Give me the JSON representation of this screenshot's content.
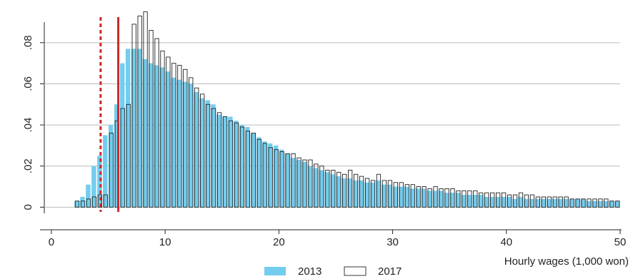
{
  "chart_data": {
    "type": "histogram",
    "x_label": "Hourly wages (1,000 won)",
    "bins": [
      2,
      2.5,
      3,
      3.5,
      4,
      4.5,
      5,
      5.5,
      6,
      6.5,
      7,
      7.5,
      8,
      8.5,
      9,
      9.5,
      10,
      10.5,
      11,
      11.5,
      12,
      12.5,
      13,
      13.5,
      14,
      14.5,
      15,
      15.5,
      16,
      16.5,
      17,
      17.5,
      18,
      18.5,
      19,
      19.5,
      20,
      20.5,
      21,
      21.5,
      22,
      22.5,
      23,
      23.5,
      24,
      24.5,
      25,
      25.5,
      26,
      26.5,
      27,
      27.5,
      28,
      28.5,
      29,
      29.5,
      30,
      30.5,
      31,
      31.5,
      32,
      32.5,
      33,
      33.5,
      34,
      34.5,
      35,
      35.5,
      36,
      36.5,
      37,
      37.5,
      38,
      38.5,
      39,
      39.5,
      40,
      40.5,
      41,
      41.5,
      42,
      42.5,
      43,
      43.5,
      44,
      44.5,
      45,
      45.5,
      46,
      46.5,
      47,
      47.5,
      48,
      48.5,
      49,
      49.5,
      50
    ],
    "series": [
      {
        "name": "2013",
        "color": "#73cdee",
        "style": "filled",
        "values": [
          0.003,
          0.005,
          0.011,
          0.02,
          0.025,
          0.035,
          0.04,
          0.05,
          0.07,
          0.077,
          0.077,
          0.077,
          0.072,
          0.07,
          0.069,
          0.068,
          0.066,
          0.063,
          0.062,
          0.061,
          0.06,
          0.056,
          0.053,
          0.052,
          0.05,
          0.045,
          0.044,
          0.044,
          0.042,
          0.04,
          0.039,
          0.036,
          0.034,
          0.032,
          0.031,
          0.03,
          0.028,
          0.026,
          0.024,
          0.023,
          0.022,
          0.02,
          0.019,
          0.018,
          0.017,
          0.016,
          0.015,
          0.014,
          0.014,
          0.013,
          0.013,
          0.012,
          0.012,
          0.013,
          0.011,
          0.011,
          0.01,
          0.01,
          0.01,
          0.009,
          0.009,
          0.009,
          0.008,
          0.008,
          0.008,
          0.007,
          0.007,
          0.007,
          0.006,
          0.006,
          0.006,
          0.006,
          0.005,
          0.005,
          0.005,
          0.005,
          0.005,
          0.004,
          0.005,
          0.004,
          0.004,
          0.004,
          0.004,
          0.004,
          0.004,
          0.004,
          0.004,
          0.004,
          0.004,
          0.004,
          0.003,
          0.003,
          0.003,
          0.003,
          0.003,
          0.003
        ]
      },
      {
        "name": "2017",
        "color": "#222222",
        "style": "outline",
        "values": [
          0.003,
          0.003,
          0.004,
          0.005,
          0.006,
          0.006,
          0.036,
          0.042,
          0.048,
          0.05,
          0.089,
          0.093,
          0.095,
          0.086,
          0.082,
          0.076,
          0.073,
          0.07,
          0.069,
          0.067,
          0.063,
          0.058,
          0.055,
          0.05,
          0.048,
          0.046,
          0.044,
          0.042,
          0.041,
          0.039,
          0.037,
          0.036,
          0.033,
          0.031,
          0.029,
          0.028,
          0.027,
          0.026,
          0.026,
          0.024,
          0.023,
          0.023,
          0.021,
          0.02,
          0.018,
          0.018,
          0.017,
          0.016,
          0.018,
          0.016,
          0.015,
          0.014,
          0.013,
          0.016,
          0.013,
          0.013,
          0.012,
          0.012,
          0.011,
          0.011,
          0.01,
          0.01,
          0.009,
          0.01,
          0.009,
          0.009,
          0.009,
          0.008,
          0.008,
          0.008,
          0.008,
          0.007,
          0.007,
          0.007,
          0.007,
          0.007,
          0.006,
          0.006,
          0.007,
          0.006,
          0.006,
          0.005,
          0.005,
          0.005,
          0.005,
          0.005,
          0.005,
          0.004,
          0.004,
          0.004,
          0.004,
          0.004,
          0.004,
          0.004,
          0.003,
          0.003
        ]
      }
    ],
    "reference_lines": [
      {
        "x": 4.33,
        "style": "dashed",
        "color": "#cc2a2a"
      },
      {
        "x": 5.88,
        "style": "solid",
        "color": "#cc2a2a"
      }
    ],
    "xlim": [
      -1,
      50
    ],
    "xticks": [
      0,
      10,
      20,
      30,
      40,
      50
    ],
    "ylim": [
      -0.003,
      0.09
    ],
    "yticks": [
      {
        "value": 0,
        "label": "0"
      },
      {
        "value": 0.02,
        "label": ".02"
      },
      {
        "value": 0.04,
        "label": ".04"
      },
      {
        "value": 0.06,
        "label": ".06"
      },
      {
        "value": 0.08,
        "label": ".08"
      }
    ],
    "grid": true,
    "legend": "bottom"
  }
}
